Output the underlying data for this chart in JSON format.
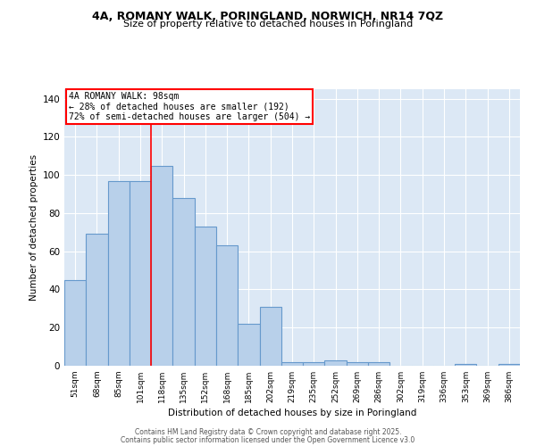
{
  "title_line1": "4A, ROMANY WALK, PORINGLAND, NORWICH, NR14 7QZ",
  "title_line2": "Size of property relative to detached houses in Poringland",
  "xlabel": "Distribution of detached houses by size in Poringland",
  "ylabel": "Number of detached properties",
  "categories": [
    "51sqm",
    "68sqm",
    "85sqm",
    "101sqm",
    "118sqm",
    "135sqm",
    "152sqm",
    "168sqm",
    "185sqm",
    "202sqm",
    "219sqm",
    "235sqm",
    "252sqm",
    "269sqm",
    "286sqm",
    "302sqm",
    "319sqm",
    "336sqm",
    "353sqm",
    "369sqm",
    "386sqm"
  ],
  "values": [
    45,
    69,
    97,
    97,
    105,
    88,
    73,
    63,
    22,
    31,
    2,
    2,
    3,
    2,
    2,
    0,
    0,
    0,
    1,
    0,
    1
  ],
  "bar_color": "#b8d0ea",
  "bar_edge_color": "#6699cc",
  "bar_width": 1.0,
  "vline_x": 3.5,
  "vline_color": "red",
  "annotation_title": "4A ROMANY WALK: 98sqm",
  "annotation_line1": "← 28% of detached houses are smaller (192)",
  "annotation_line2": "72% of semi-detached houses are larger (504) →",
  "annotation_box_color": "white",
  "annotation_box_edge": "red",
  "ylim": [
    0,
    145
  ],
  "yticks": [
    0,
    20,
    40,
    60,
    80,
    100,
    120,
    140
  ],
  "background_color": "#dce8f5",
  "footer_line1": "Contains HM Land Registry data © Crown copyright and database right 2025.",
  "footer_line2": "Contains public sector information licensed under the Open Government Licence v3.0"
}
